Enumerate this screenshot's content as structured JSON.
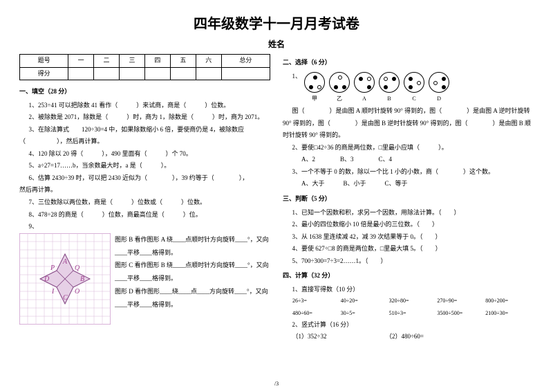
{
  "doc_title": "四年级数学十一月月考试卷",
  "name_label": "姓名",
  "score_header": [
    "题号",
    "一",
    "二",
    "三",
    "四",
    "五",
    "六",
    "总分"
  ],
  "score_row_label": "得分",
  "sections": {
    "s1": "一、填空（28 分）",
    "s2": "二、选择（6 分）",
    "s3": "三、判断（5 分）",
    "s4": "四、计算（32 分）"
  },
  "fill": {
    "q1": "1、253÷41 可以把除数 41 看作（　　　）来试商，商是（　　　）位数。",
    "q2": "2、被除数是 2071，除数是（　　　）时，商为 1，除数是（　　　）时，商为 2071。",
    "q3": "3、在除法算式　　120÷30=4 中，如果除数缩小 6 倍，要使商仍是 4，被除数应（　　　　　），然后再计算。",
    "q4": "4、120 除以 20 得（　　　），490 里面有（　　　）个 70。",
    "q5": "5、a÷27=17……b，当余数最大时，a 是（　　　）。",
    "q6a": "6、估算 2430÷39 时，可以把 2430 近似为（　　　　），39 约等于（　　　　），",
    "q6b": "然后再计算。",
    "q7": "7、三位数除以两位数，商是（　　　）位数或（　　　）位数。",
    "q8": "8、478÷28 的商是（　　　）位数，商最高位是（　　　）位。",
    "q9": "9、",
    "shapeB": "图形 B 看作图形 A 绕____点顺时针方向旋转____°，又向____平移____格得到。",
    "shapeC": "图形 C 看作图形 B 绕____点顺时针方向旋转____°，又向____平移____格得到。",
    "shapeD": "图形 D 看作图形____绕____点____方向旋转____°，又向____平移____格得到。"
  },
  "choice": {
    "q1a": "1、",
    "q1b": "图（　　　　）是由图 A 顺时针旋转 90° 得到的，图（　　　　）是由图 A 逆时针旋转 90° 得到的，图（　　　　）是由图 B 逆时针旋转 90° 得到的，图（　　　　）是由图 B 顺时针旋转 90° 得到的。",
    "q2": "2、要使□42÷36 的商是两位数，□里最小应填（　　　）。",
    "q2o": "A、2　　　　B、3　　　　C、4",
    "q3": "3、一个不等于 0 的数，除以一个比 1 小的小数，商（　　　　）这个数。",
    "q3o": "A、大于　　　B、小于　　　C、等于",
    "labels": [
      "甲",
      "乙",
      "A",
      "B",
      "C",
      "D"
    ]
  },
  "judge": {
    "q1": "1、已知一个因数和积，求另一个因数，用除法计算。（　　）",
    "q2": "2、最小的四位数缩小 10 倍是最小的三位数。（　　）",
    "q3": "3、从 1638 里连续减 42，减 39 次结果等于 0。（　　）",
    "q4": "4、要使 627÷□8 的商是两位数，□里最大填 5。（　　）",
    "q5": "5、700÷300=7÷3=2……1。（　　）"
  },
  "calc": {
    "h1": "1、直接写得数（10 分）",
    "r1": [
      "26÷3=",
      "40÷20=",
      "320÷80=",
      "270÷90=",
      "800÷200="
    ],
    "r2": [
      "480÷60=",
      "30÷5=",
      "510÷3=",
      "3500÷500=",
      "2100÷30="
    ],
    "h2": "2、竖式计算（16 分）",
    "v": "（1）352÷32　　　　　　　　　　（2）480÷60="
  },
  "page": "/3",
  "grid": {
    "cell": 12,
    "cols": 11,
    "rows": 11,
    "border_color": "#cc99cc",
    "line_color": "#d8b8d8",
    "diamond_fill": "#e6d0e6",
    "diamond_stroke": "#804080",
    "letters": {
      "A": "A",
      "B": "B",
      "C": "C",
      "D": "D",
      "P": "P",
      "Q": "Q",
      "I": "I",
      "O": "O"
    },
    "font_color": "#a04090"
  }
}
